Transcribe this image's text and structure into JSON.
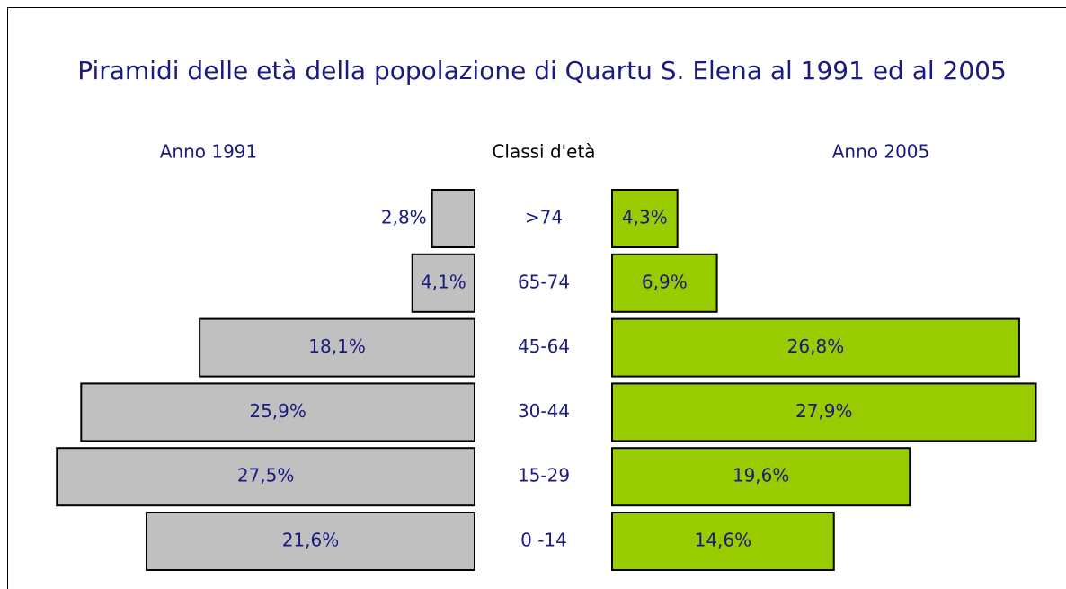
{
  "chart_data": {
    "type": "pyramid",
    "title": "Piramidi delle età della popolazione di Quartu S. Elena al 1991 ed al 2005",
    "category_label": "Classi d'età",
    "categories": [
      ">74",
      "65-74",
      "45-64",
      "30-44",
      "15-29",
      "0 -14"
    ],
    "series": [
      {
        "name": "Anno 1991",
        "color": "#c0c0c0",
        "values": [
          2.8,
          4.1,
          18.1,
          25.9,
          27.5,
          21.6
        ],
        "value_labels": [
          "2,8%",
          "4,1%",
          "18,1%",
          "25,9%",
          "27,5%",
          "21,6%"
        ]
      },
      {
        "name": "Anno 2005",
        "color": "#99cc00",
        "values": [
          4.3,
          6.9,
          26.8,
          27.9,
          19.6,
          14.6
        ],
        "value_labels": [
          "4,3%",
          "6,9%",
          "26,8%",
          "27,9%",
          "19,6%",
          "14,6%"
        ]
      }
    ]
  }
}
